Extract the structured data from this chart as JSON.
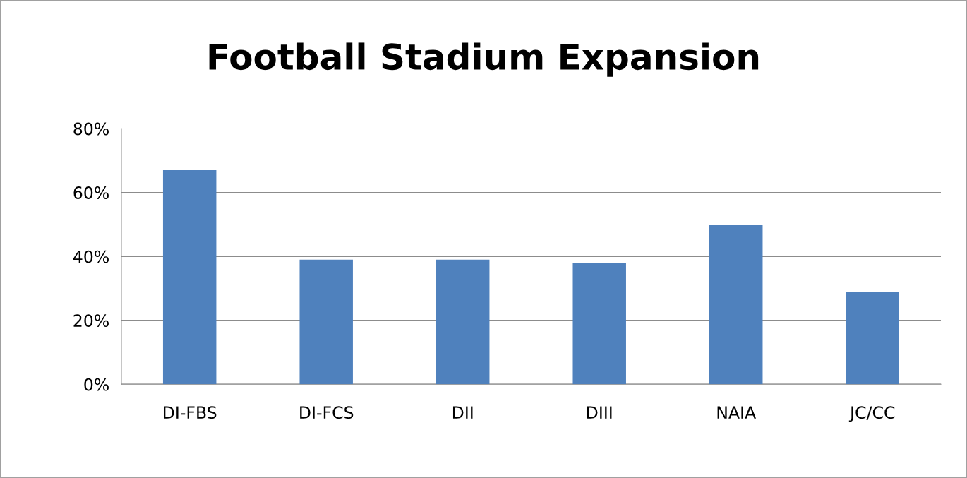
{
  "chart_data": {
    "type": "bar",
    "title": "Football Stadium Expansion",
    "categories": [
      "DI-FBS",
      "DI-FCS",
      "DII",
      "DIII",
      "NAIA",
      "JC/CC"
    ],
    "values": [
      67,
      39,
      39,
      38,
      50,
      29
    ],
    "color": "#4f81bd",
    "ylim": [
      0,
      80
    ],
    "yticks": [
      {
        "value": 0,
        "label": "0%"
      },
      {
        "value": 20,
        "label": "20%"
      },
      {
        "value": 40,
        "label": "40%"
      },
      {
        "value": 60,
        "label": "60%"
      },
      {
        "value": 80,
        "label": "80%"
      }
    ],
    "grid": "y",
    "legend": false
  }
}
